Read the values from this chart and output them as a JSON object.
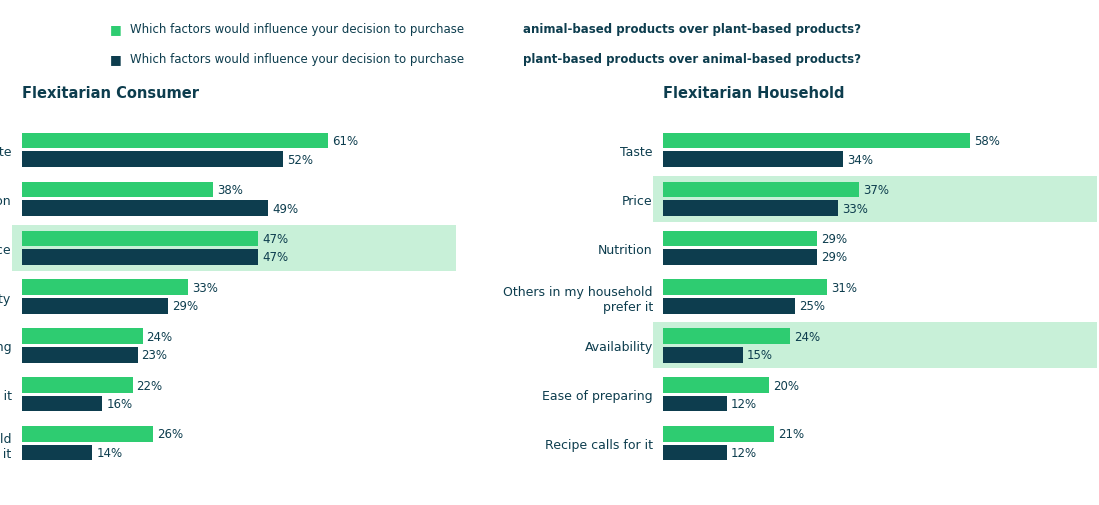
{
  "consumer": {
    "title": "Flexitarian Consumer",
    "categories": [
      "Taste",
      "Nutrition",
      "Price",
      "Availability",
      "Ease of preparing",
      "Recipe calls for it",
      "Others in my household\nprefer it"
    ],
    "animal": [
      61,
      38,
      47,
      33,
      24,
      22,
      26
    ],
    "plant": [
      52,
      49,
      47,
      29,
      23,
      16,
      14
    ],
    "highlighted": [
      2
    ]
  },
  "household": {
    "title": "Flexitarian Household",
    "categories": [
      "Taste",
      "Price",
      "Nutrition",
      "Others in my household\nprefer it",
      "Availability",
      "Ease of preparing",
      "Recipe calls for it"
    ],
    "animal": [
      58,
      37,
      29,
      31,
      24,
      20,
      21
    ],
    "plant": [
      34,
      33,
      29,
      25,
      15,
      12,
      12
    ],
    "highlighted": [
      1,
      4
    ]
  },
  "color_animal": "#2ECC71",
  "color_plant": "#0D3D4E",
  "color_highlight": "#C8F0D8",
  "color_title": "#0D3D4E",
  "color_label": "#0D3D4E",
  "color_pct": "#0D3D4E",
  "bar_height": 0.32,
  "bar_gap": 0.06
}
